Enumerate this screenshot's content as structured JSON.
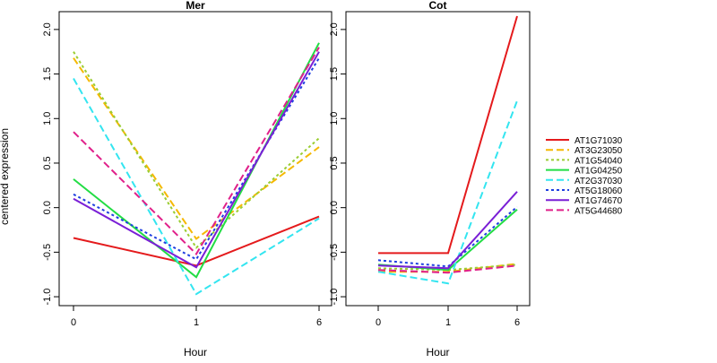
{
  "chart_data": {
    "type": "line",
    "ylabel": "centered expression",
    "xlabel": "Hour",
    "categories": [
      "0",
      "1",
      "6"
    ],
    "yticks": [
      -1.0,
      -0.5,
      0.0,
      0.5,
      1.0,
      1.5,
      2.0
    ],
    "ytick_labels": [
      "-1.0",
      "-0.5",
      "0.0",
      "0.5",
      "1.0",
      "1.5",
      "2.0"
    ],
    "grid": false,
    "legend_position": "right",
    "series": [
      {
        "name": "AT1G71030",
        "color": "#E41A1C",
        "dash": "solid"
      },
      {
        "name": "AT3G23050",
        "color": "#F5B800",
        "dash": "dashed"
      },
      {
        "name": "AT1G54040",
        "color": "#9ACD32",
        "dash": "dotted"
      },
      {
        "name": "AT1G04250",
        "color": "#22DD44",
        "dash": "solid"
      },
      {
        "name": "AT2G37030",
        "color": "#33E5F0",
        "dash": "dashed"
      },
      {
        "name": "AT5G18060",
        "color": "#1F3FE0",
        "dash": "dotted"
      },
      {
        "name": "AT1G74670",
        "color": "#7A1FD6",
        "dash": "solid"
      },
      {
        "name": "AT5G44680",
        "color": "#E0208A",
        "dash": "dashed"
      }
    ],
    "panels": [
      {
        "title": "Mer",
        "ylim": [
          -1.1,
          2.2
        ],
        "values": [
          [
            -0.34,
            -0.65,
            -0.1
          ],
          [
            1.68,
            -0.35,
            0.68
          ],
          [
            1.75,
            -0.45,
            0.78
          ],
          [
            0.32,
            -0.78,
            1.85
          ],
          [
            1.45,
            -0.97,
            -0.12
          ],
          [
            0.15,
            -0.58,
            1.68
          ],
          [
            0.1,
            -0.67,
            1.75
          ],
          [
            0.85,
            -0.52,
            1.8
          ]
        ]
      },
      {
        "title": "Cot",
        "ylim": [
          -1.1,
          2.2
        ],
        "values": [
          [
            -0.51,
            -0.51,
            2.15
          ],
          [
            -0.72,
            -0.72,
            -0.63
          ],
          [
            -0.68,
            -0.7,
            -0.64
          ],
          [
            -0.64,
            -0.7,
            -0.02
          ],
          [
            -0.72,
            -0.85,
            1.2
          ],
          [
            -0.59,
            -0.66,
            0.01
          ],
          [
            -0.65,
            -0.68,
            0.18
          ],
          [
            -0.7,
            -0.73,
            -0.65
          ]
        ]
      }
    ]
  }
}
